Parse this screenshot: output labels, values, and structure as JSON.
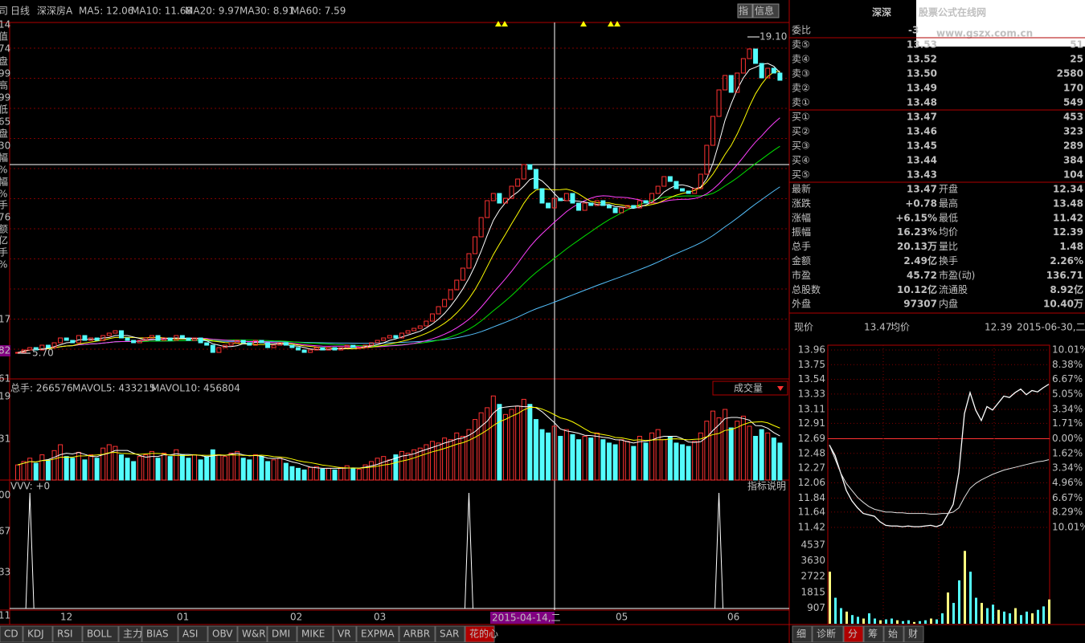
{
  "side_labels": [
    "司",
    "14",
    "值",
    "74",
    "盘",
    "99",
    "高",
    "99",
    "低",
    "65",
    "盘",
    "30",
    "幅",
    "%",
    "幅",
    "%",
    "手",
    "76",
    "额",
    "亿",
    "手",
    "%",
    "17",
    "82",
    "61",
    "19",
    "31",
    "00",
    "67",
    "33",
    "11"
  ],
  "header": {
    "period": "日线",
    "name": "深深房A",
    "ma": [
      "MA5: 12.06",
      "MA10: 11.68",
      "MA20: 9.97",
      "MA30: 8.91",
      "MA60: 7.59"
    ],
    "buttons": [
      "指",
      "信息"
    ]
  },
  "price_chart": {
    "ylim": [
      4.9,
      19.7
    ],
    "high_label": "19.10",
    "low_label": "5.70",
    "closes": [
      6.0,
      6.1,
      6.2,
      6.1,
      6.3,
      6.2,
      6.4,
      6.6,
      6.5,
      6.4,
      6.7,
      6.5,
      6.6,
      6.5,
      6.7,
      6.8,
      6.9,
      6.6,
      6.5,
      6.4,
      6.5,
      6.6,
      6.7,
      6.5,
      6.6,
      6.5,
      6.7,
      6.6,
      6.5,
      6.6,
      6.4,
      6.3,
      6.0,
      6.2,
      6.3,
      6.4,
      6.5,
      6.4,
      6.3,
      6.5,
      6.4,
      6.2,
      6.3,
      6.4,
      6.3,
      6.2,
      6.1,
      6.0,
      6.1,
      6.2,
      6.1,
      6.2,
      6.1,
      6.2,
      6.3,
      6.2,
      6.2,
      6.3,
      6.4,
      6.5,
      6.6,
      6.7,
      6.6,
      6.8,
      6.9,
      7.0,
      7.1,
      7.3,
      7.6,
      7.9,
      8.2,
      8.6,
      9.0,
      9.5,
      10.1,
      10.8,
      11.6,
      12.3,
      12.6,
      12.2,
      12.4,
      12.9,
      13.2,
      13.8,
      13.6,
      12.8,
      12.2,
      12.0,
      12.4,
      12.3,
      12.6,
      12.2,
      11.9,
      12.2,
      12.1,
      12.3,
      12.1,
      12.0,
      11.8,
      12.0,
      12.1,
      12.0,
      12.3,
      12.2,
      12.6,
      12.9,
      13.3,
      13.1,
      12.8,
      12.7,
      12.6,
      12.8,
      13.4,
      14.6,
      15.8,
      16.9,
      17.5,
      16.8,
      17.6,
      18.2,
      18.6,
      18.0,
      17.4,
      17.8,
      17.6,
      17.3
    ]
  },
  "volume_chart": {
    "header": [
      "总手: 266576",
      "MAVOL5: 433215",
      "MAVOL10: 456804"
    ],
    "button": "成交量",
    "ylim": [
      0,
      1050000
    ],
    "values": [
      180000,
      220000,
      260000,
      200000,
      300000,
      240000,
      350000,
      420000,
      280000,
      260000,
      330000,
      240000,
      300000,
      260000,
      380000,
      420000,
      400000,
      300000,
      260000,
      220000,
      280000,
      300000,
      340000,
      260000,
      320000,
      280000,
      360000,
      300000,
      260000,
      300000,
      240000,
      280000,
      360000,
      300000,
      280000,
      320000,
      340000,
      260000,
      240000,
      300000,
      280000,
      220000,
      240000,
      260000,
      200000,
      160000,
      140000,
      120000,
      150000,
      160000,
      130000,
      140000,
      120000,
      150000,
      170000,
      140000,
      130000,
      180000,
      220000,
      260000,
      280000,
      240000,
      300000,
      340000,
      320000,
      360000,
      380000,
      420000,
      460000,
      440000,
      500000,
      480000,
      560000,
      520000,
      600000,
      720000,
      800000,
      860000,
      1000000,
      900000,
      780000,
      840000,
      880000,
      960000,
      900000,
      720000,
      600000,
      560000,
      640000,
      520000,
      600000,
      540000,
      480000,
      520000,
      500000,
      560000,
      480000,
      440000,
      420000,
      480000,
      460000,
      400000,
      520000,
      440000,
      560000,
      600000,
      480000,
      520000,
      440000,
      420000,
      400000,
      460000,
      560000,
      700000,
      820000,
      740000,
      840000,
      620000,
      700000,
      760000,
      640000,
      520000,
      600000,
      560000,
      500000,
      440000
    ]
  },
  "indicator_chart": {
    "header": "VVV: +0",
    "button": "指标说明",
    "ylim": [
      0,
      100
    ],
    "spikes": [
      2,
      74,
      115
    ],
    "spike_value": 100
  },
  "date_axis": {
    "labels": [
      "12",
      "01",
      "02",
      "03",
      "05",
      "06"
    ],
    "cursor": "2015-04-14,二"
  },
  "tabs": [
    "CD",
    "KDJ",
    "RSI",
    "BOLL",
    "主力",
    "BIAS",
    "ASI",
    "OBV",
    "W&R",
    "DMI",
    "MIKE",
    "VR",
    "EXPMA",
    "ARBR",
    "SAR",
    "花的心"
  ],
  "quote": {
    "title": "深深",
    "watermark": "股票公式在线网",
    "watermark_url": "www.gszx.com.cn",
    "order_book": [
      [
        "委比",
        "-3"
      ],
      [
        "卖⑤",
        "13.53",
        "51"
      ],
      [
        "卖④",
        "13.52",
        "25"
      ],
      [
        "卖③",
        "13.50",
        "2580"
      ],
      [
        "卖②",
        "13.49",
        "170"
      ],
      [
        "卖①",
        "13.48",
        "549"
      ],
      [
        "买①",
        "13.47",
        "453"
      ],
      [
        "买②",
        "13.46",
        "323"
      ],
      [
        "买③",
        "13.45",
        "289"
      ],
      [
        "买④",
        "13.44",
        "384"
      ],
      [
        "买⑤",
        "13.43",
        "104"
      ]
    ],
    "stats": [
      [
        "最新",
        "13.47",
        "开盘",
        "12.34"
      ],
      [
        "涨跌",
        "+0.78",
        "最高",
        "13.48"
      ],
      [
        "涨幅",
        "+6.15%",
        "最低",
        "11.42"
      ],
      [
        "振幅",
        "16.23%",
        "均价",
        "12.39"
      ],
      [
        "总手",
        "20.13万",
        "量比",
        "1.48"
      ],
      [
        "金额",
        "2.49亿",
        "换手",
        "2.26%"
      ],
      [
        "市盈",
        "45.72",
        "市盈(动)",
        "136.71"
      ],
      [
        "总股数",
        "10.12亿",
        "流通股",
        "8.92亿"
      ],
      [
        "外盘",
        "97307",
        "内盘",
        "10.40万"
      ]
    ]
  },
  "intraday": {
    "header": [
      "现价",
      "13.47",
      "均价",
      "12.39",
      "2015-06-30,二"
    ],
    "yticks": [
      13.96,
      13.75,
      13.54,
      13.33,
      13.11,
      12.91,
      12.69,
      12.48,
      12.27,
      12.06,
      11.84,
      11.64,
      11.42
    ],
    "pct_labels": [
      "10.01%",
      "8.38%",
      "6.67%",
      "5.05%",
      "3.34%",
      "1.71%",
      "0.00%",
      "1.62%",
      "3.34%",
      "4.96%",
      "6.67%",
      "8.29%",
      "10.01%"
    ],
    "price": [
      12.6,
      12.45,
      12.2,
      11.95,
      11.8,
      11.7,
      11.62,
      11.6,
      11.58,
      11.5,
      11.45,
      11.44,
      11.44,
      11.43,
      11.44,
      11.43,
      11.43,
      11.44,
      11.45,
      11.43,
      11.46,
      11.6,
      11.75,
      12.2,
      13.05,
      13.35,
      13.1,
      12.95,
      13.15,
      13.1,
      13.2,
      13.3,
      13.28,
      13.35,
      13.4,
      13.32,
      13.38,
      13.36,
      13.42,
      13.47
    ],
    "average": [
      12.6,
      12.4,
      12.2,
      12.05,
      11.95,
      11.85,
      11.78,
      11.72,
      11.68,
      11.66,
      11.64,
      11.64,
      11.63,
      11.63,
      11.62,
      11.62,
      11.62,
      11.62,
      11.61,
      11.61,
      11.62,
      11.62,
      11.64,
      11.7,
      11.85,
      11.98,
      12.05,
      12.1,
      12.14,
      12.18,
      12.21,
      12.24,
      12.26,
      12.28,
      12.3,
      12.32,
      12.34,
      12.36,
      12.37,
      12.39
    ],
    "vol_ticks": [
      4537,
      3630,
      2722,
      1815,
      907
    ],
    "vol_ylim": [
      0,
      4537
    ],
    "volume": [
      3000,
      1500,
      900,
      700,
      500,
      400,
      300,
      600,
      300,
      200,
      250,
      300,
      200,
      150,
      200,
      100,
      150,
      200,
      300,
      250,
      600,
      1800,
      1200,
      2500,
      4200,
      3000,
      1500,
      1200,
      900,
      1100,
      800,
      700,
      600,
      900,
      500,
      700,
      600,
      800,
      1000,
      1400
    ],
    "tabs": [
      "细",
      "诊断",
      "分",
      "筹",
      "始",
      "财"
    ]
  }
}
